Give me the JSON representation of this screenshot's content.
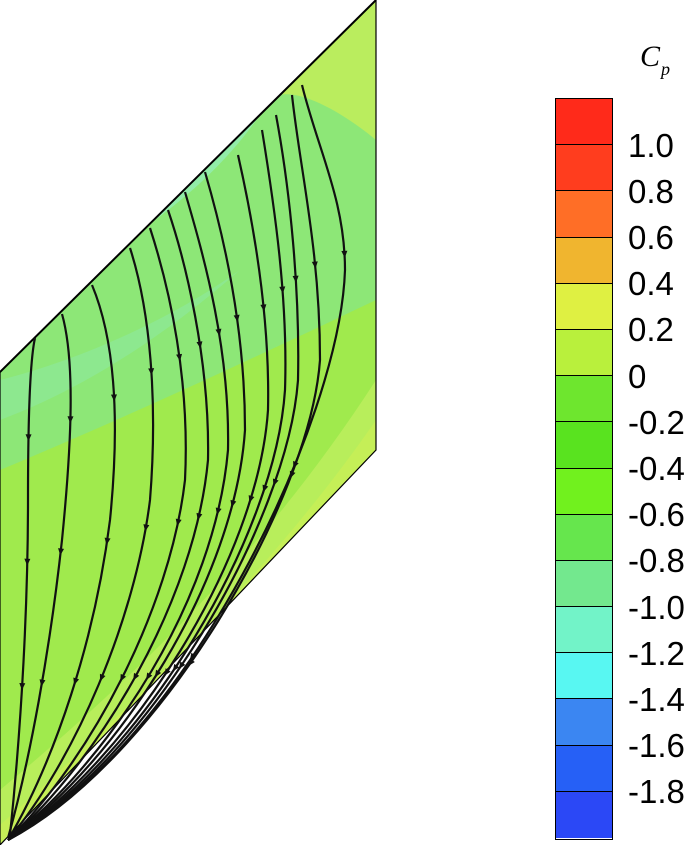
{
  "legend": {
    "title_main": "C",
    "title_sub": "p",
    "colors": [
      "#ff2a1a",
      "#ff3d1e",
      "#ff6e26",
      "#f0b52f",
      "#dff042",
      "#b9f03c",
      "#6ee62e",
      "#59e31f",
      "#71f11e",
      "#66e64d",
      "#73e88e",
      "#72f3c8",
      "#58f7f2",
      "#3b86f2",
      "#2660f6",
      "#2b48f6"
    ],
    "tick_labels": [
      "1.0",
      "0.8",
      "0.6",
      "0.4",
      "0.2",
      "0",
      "-0.2",
      "-0.4",
      "-0.6",
      "-0.8",
      "-1.0",
      "-1.2",
      "-1.4",
      "-1.6",
      "-1.8"
    ]
  },
  "surface": {
    "colors": {
      "tip_band": "#c5ef57",
      "upper_mid": "#a0ea4d",
      "mid_band": "#8be77c",
      "low_pressure_core": "#93ecb0",
      "trailing_band": "#b8ee5b"
    }
  }
}
